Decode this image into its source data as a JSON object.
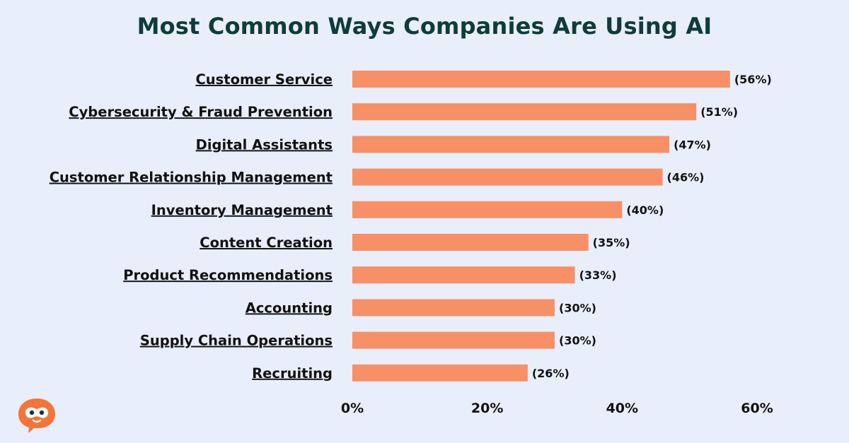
{
  "chart_data": {
    "type": "bar",
    "orientation": "horizontal",
    "title": "Most Common Ways Companies Are Using AI",
    "categories": [
      "Customer Service",
      "Cybersecurity & Fraud Prevention",
      "Digital Assistants",
      "Customer Relationship Management",
      "Inventory Management",
      "Content Creation",
      "Product Recommendations",
      "Accounting",
      "Supply Chain Operations",
      "Recruiting"
    ],
    "values": [
      56,
      51,
      47,
      46,
      40,
      35,
      33,
      30,
      30,
      26
    ],
    "value_labels": [
      "(56%)",
      "(51%)",
      "(47%)",
      "(46%)",
      "(40%)",
      "(35%)",
      "(33%)",
      "(30%)",
      "(30%)",
      "(26%)"
    ],
    "xlim": [
      0,
      60
    ],
    "x_ticks": [
      0,
      20,
      40,
      60
    ],
    "x_tick_labels": [
      "0%",
      "20%",
      "40%",
      "60%"
    ],
    "grid": false,
    "legend": "none",
    "bar_color": "#f79066"
  },
  "colors": {
    "background": "#e8eefa",
    "title": "#0f3b3c",
    "text": "#111111",
    "logo": "#f4753a"
  },
  "logo": {
    "icon": "robot-chat-bubble-icon"
  }
}
